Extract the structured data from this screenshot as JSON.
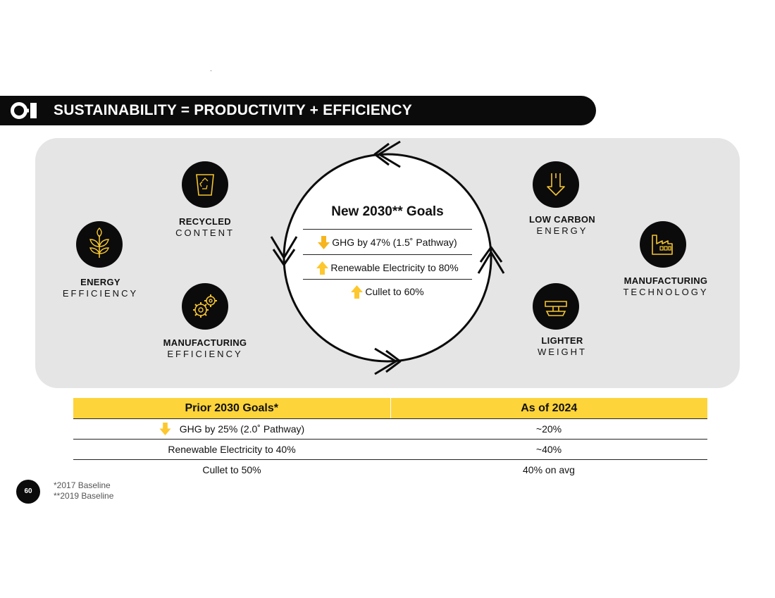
{
  "header": {
    "logo_text": "O-I",
    "title": "SUSTAINABILITY = PRODUCTIVITY + EFFICIENCY"
  },
  "levers": {
    "recycled": {
      "line1": "RECYCLED",
      "line2": "CONTENT",
      "icon": "recycle-bin-icon"
    },
    "energy": {
      "line1": "ENERGY",
      "line2": "EFFICIENCY",
      "icon": "plant-icon"
    },
    "mfg_efficiency": {
      "line1": "MANUFACTURING",
      "line2": "EFFICIENCY",
      "icon": "gears-icon"
    },
    "low_carbon": {
      "line1": "LOW CARBON",
      "line2": "ENERGY",
      "icon": "down-arrow-icon"
    },
    "mfg_technology": {
      "line1": "MANUFACTURING",
      "line2": "TECHNOLOGY",
      "icon": "factory-icon"
    },
    "lighter": {
      "line1": "LIGHTER",
      "line2": "WEIGHT",
      "icon": "scale-icon"
    }
  },
  "new_goals": {
    "title": "New 2030** Goals",
    "items": [
      {
        "direction": "down",
        "text": "GHG by 47% (1.5˚ Pathway)"
      },
      {
        "direction": "up",
        "text": "Renewable Electricity to 80%"
      },
      {
        "direction": "up",
        "text": "Cullet to 60%"
      }
    ]
  },
  "prior_table": {
    "headers": [
      "Prior 2030 Goals*",
      "As of 2024"
    ],
    "rows": [
      {
        "goal": "GHG by 25% (2.0˚ Pathway)",
        "direction": "down",
        "status": "~20%"
      },
      {
        "goal": "Renewable Electricity to 40%",
        "direction": "",
        "status": "~40%"
      },
      {
        "goal": "Cullet to 50%",
        "direction": "",
        "status": "40% on avg"
      }
    ]
  },
  "footer": {
    "page_number": "60",
    "footnote_1": "*2017 Baseline",
    "footnote_2": "**2019 Baseline"
  },
  "colors": {
    "accent": "#fdd43a",
    "icon_gold": "#f4c430",
    "dark": "#0b0b0b",
    "panel": "#e5e5e5"
  }
}
